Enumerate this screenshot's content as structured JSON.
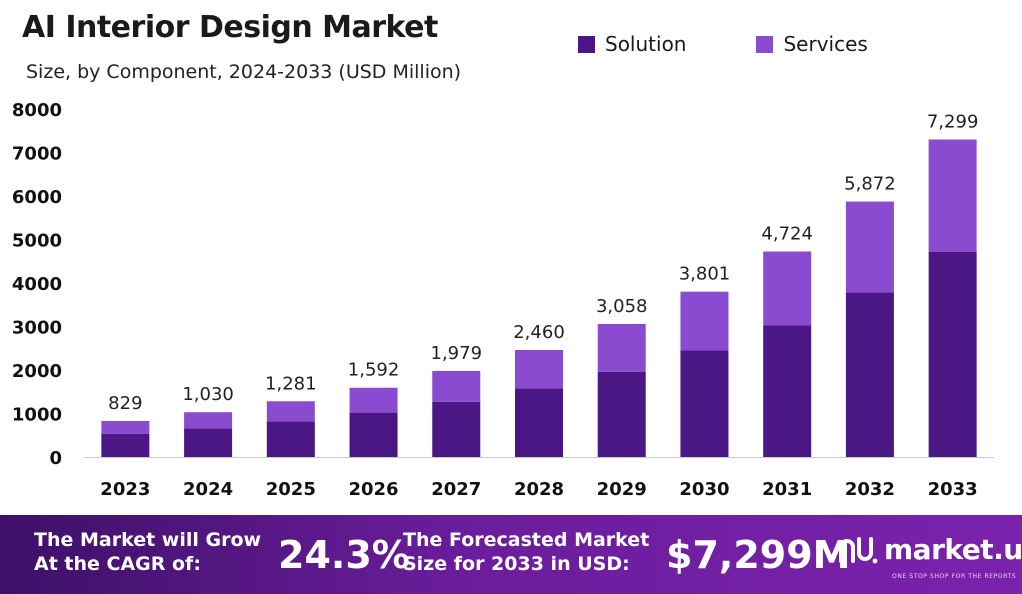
{
  "chart_data": {
    "type": "bar",
    "stacked": true,
    "title": "AI Interior Design Market",
    "subtitle": "Size, by Component, 2024-2033 (USD Million)",
    "categories": [
      "2023",
      "2024",
      "2025",
      "2026",
      "2027",
      "2028",
      "2029",
      "2030",
      "2031",
      "2032",
      "2033"
    ],
    "series": [
      {
        "name": "Solution",
        "color": "#4a1784",
        "values": [
          530,
          660,
          820,
          1020,
          1270,
          1580,
          1960,
          2450,
          3030,
          3780,
          4720
        ]
      },
      {
        "name": "Services",
        "color": "#8a4bd0",
        "values": [
          299,
          370,
          461,
          572,
          709,
          880,
          1098,
          1351,
          1694,
          2092,
          2579
        ]
      }
    ],
    "totals": [
      "829",
      "1,030",
      "1,281",
      "1,592",
      "1,979",
      "2,460",
      "3,058",
      "3,801",
      "4,724",
      "5,872",
      "7,299"
    ],
    "totals_values": [
      829,
      1030,
      1281,
      1592,
      1979,
      2460,
      3058,
      3801,
      4724,
      5872,
      7299
    ],
    "ylim": [
      0,
      8000
    ],
    "yticks": [
      "0",
      "1000",
      "2000",
      "3000",
      "4000",
      "5000",
      "6000",
      "7000",
      "8000"
    ],
    "ytick_values": [
      0,
      1000,
      2000,
      3000,
      4000,
      5000,
      6000,
      7000,
      8000
    ],
    "legend_position": "top-right",
    "grid": false
  },
  "footer": {
    "cagr_label": "The Market will Grow At the CAGR of:",
    "cagr_value": "24.3%",
    "size_label": "The Forecasted Market Size for 2033 in USD:",
    "size_value": "$7,299M",
    "brand": "market.us",
    "tagline": "ONE STOP SHOP FOR THE REPORTS"
  }
}
